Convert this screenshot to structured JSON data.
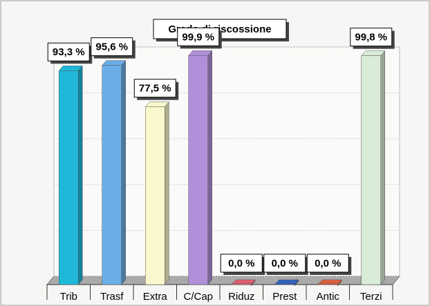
{
  "chart_data": {
    "type": "bar",
    "title": "Grado di riscossione",
    "categories": [
      "Trib",
      "Trasf",
      "Extra",
      "C/Cap",
      "Riduz",
      "Prest",
      "Antic",
      "Terzi"
    ],
    "values": [
      93.3,
      95.6,
      77.5,
      99.9,
      0,
      0,
      0,
      99.8
    ],
    "value_labels": [
      "93,3 %",
      "95,6 %",
      "77,5 %",
      "99,9 %",
      "0,0 %",
      "0,0 %",
      "0,0 %",
      "99,8 %"
    ],
    "colors": [
      "#1fb8d8",
      "#6aaee8",
      "#f8f8cc",
      "#b090d8",
      "#e06070",
      "#3060c0",
      "#e06040",
      "#d8ecd8"
    ],
    "ylim": [
      0,
      100
    ],
    "yticks": [
      0,
      20,
      40,
      60,
      80,
      100
    ],
    "grid": true
  }
}
